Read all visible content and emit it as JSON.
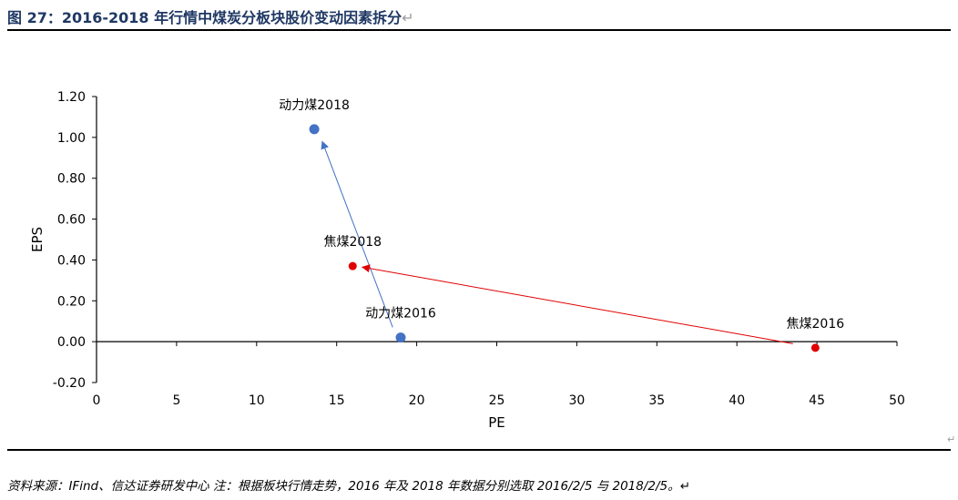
{
  "title": "图 27：2016-2018 年行情中煤炭分板块股价变动因素拆分",
  "return_mark": "↵",
  "side_mark": "↵",
  "note": "资料来源：IFind、信达证券研发中心 注：根据板块行情走势，2016 年及 2018 年数据分别选取 2016/2/5 与 2018/2/5。↵",
  "chart_data": {
    "type": "scatter",
    "xlabel": "PE",
    "ylabel": "EPS",
    "xlim": [
      0,
      50
    ],
    "ylim": [
      -0.2,
      1.2
    ],
    "xticks": [
      "0",
      "5",
      "10",
      "15",
      "20",
      "25",
      "30",
      "35",
      "40",
      "45",
      "50"
    ],
    "yticks": [
      "1.20",
      "1.00",
      "0.80",
      "0.60",
      "0.40",
      "0.20",
      "0.00",
      "-0.20"
    ],
    "grid": false,
    "series": [
      {
        "color": "#4472c4",
        "points": [
          {
            "label": "动力煤2016",
            "x": 19.0,
            "y": 0.02
          },
          {
            "label": "动力煤2018",
            "x": 13.6,
            "y": 1.04
          }
        ]
      },
      {
        "color": "#e00000",
        "points": [
          {
            "label": "焦煤2016",
            "x": 44.9,
            "y": -0.03
          },
          {
            "label": "焦煤2018",
            "x": 16.0,
            "y": 0.37
          }
        ]
      }
    ],
    "arrows": [
      {
        "color": "#4472c4",
        "from": [
          18.5,
          0.07
        ],
        "to": [
          14.1,
          0.98
        ]
      },
      {
        "color": "#e00000",
        "from": [
          43.5,
          -0.01
        ],
        "to": [
          16.6,
          0.365
        ]
      }
    ]
  }
}
